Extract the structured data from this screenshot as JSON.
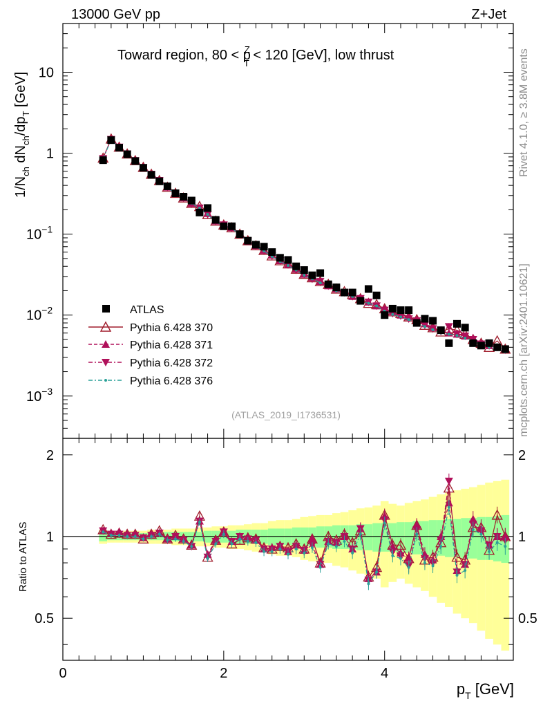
{
  "header": {
    "energy_label": "13000 GeV pp",
    "process_label": "Z+Jet",
    "plot_title": "Toward region, 80 < p",
    "plot_title_sup": "Z",
    "plot_title_sub": "T",
    "plot_title_tail": " < 120 [GeV], low thrust"
  },
  "side_labels": {
    "rivet": "Rivet 4.1.0, ≥ 3.8M events",
    "mcplots": "mcplots.cern.ch [arXiv:2401.10621]"
  },
  "analysis_id": "(ATLAS_2019_I1736531)",
  "y_axis_top": {
    "label_main": "1/N",
    "label_ch1": "ch",
    "label_mid": " dN",
    "label_ch2": "ch",
    "label_dp": "/dp",
    "label_t": "T",
    "label_unit": " [GeV]"
  },
  "y_axis_bottom": {
    "label": "Ratio to ATLAS"
  },
  "x_axis": {
    "label_main": "p",
    "label_sub": "T",
    "label_unit": " [GeV]"
  },
  "legend": {
    "atlas": "ATLAS",
    "s370": "Pythia 6.428 370",
    "s371": "Pythia 6.428 371",
    "s372": "Pythia 6.428 372",
    "s376": "Pythia 6.428 376"
  },
  "colors": {
    "atlas": "#000000",
    "s370": "#a01c2b",
    "s371": "#b0105a",
    "s372": "#b0105a",
    "s376": "#2aa198",
    "band_inner": "#99ff99",
    "band_outer": "#ffff99"
  },
  "chart_data": [
    {
      "type": "scatter",
      "title": "Toward region, 80 < pT^Z < 120 [GeV], low thrust",
      "xlabel": "pT [GeV]",
      "ylabel": "1/Nch dNch/dpT [GeV]",
      "xlim": [
        0,
        5.6
      ],
      "ylim": [
        0.0003,
        40
      ],
      "yscale": "log",
      "x_ticks": [
        0,
        2,
        4
      ],
      "y_ticks": [
        "10^-3",
        "10^-2",
        "10^-1",
        "1",
        "10"
      ],
      "x": [
        0.5,
        0.6,
        0.7,
        0.8,
        0.9,
        1.0,
        1.1,
        1.2,
        1.3,
        1.4,
        1.5,
        1.6,
        1.7,
        1.8,
        1.9,
        2.0,
        2.1,
        2.2,
        2.3,
        2.4,
        2.5,
        2.6,
        2.7,
        2.8,
        2.9,
        3.0,
        3.1,
        3.2,
        3.3,
        3.4,
        3.5,
        3.6,
        3.7,
        3.8,
        3.9,
        4.0,
        4.1,
        4.2,
        4.3,
        4.4,
        4.5,
        4.6,
        4.7,
        4.8,
        4.9,
        5.0,
        5.1,
        5.2,
        5.3,
        5.4,
        5.5
      ],
      "series": [
        {
          "name": "ATLAS",
          "values": [
            0.82,
            1.45,
            1.17,
            0.97,
            0.8,
            0.66,
            0.54,
            0.45,
            0.39,
            0.32,
            0.29,
            0.26,
            0.185,
            0.21,
            0.15,
            0.125,
            0.125,
            0.1,
            0.083,
            0.074,
            0.07,
            0.06,
            0.051,
            0.048,
            0.04,
            0.036,
            0.031,
            0.033,
            0.024,
            0.022,
            0.019,
            0.019,
            0.015,
            0.021,
            0.0175,
            0.01,
            0.012,
            0.0115,
            0.0115,
            0.008,
            0.009,
            0.0085,
            0.0065,
            0.0045,
            0.0078,
            0.007,
            0.0045,
            0.0042,
            0.0045,
            0.004,
            0.0038
          ]
        },
        {
          "name": "Pythia 6.428 370",
          "values": [
            0.87,
            1.5,
            1.19,
            0.98,
            0.81,
            0.67,
            0.55,
            0.46,
            0.38,
            0.32,
            0.28,
            0.24,
            0.22,
            0.175,
            0.145,
            0.13,
            0.12,
            0.1,
            0.083,
            0.072,
            0.063,
            0.054,
            0.047,
            0.043,
            0.037,
            0.032,
            0.029,
            0.026,
            0.024,
            0.021,
            0.0195,
            0.018,
            0.016,
            0.014,
            0.0135,
            0.012,
            0.011,
            0.0105,
            0.0095,
            0.0088,
            0.0075,
            0.007,
            0.0062,
            0.0068,
            0.0065,
            0.0058,
            0.005,
            0.0045,
            0.004,
            0.0048,
            0.0038
          ]
        },
        {
          "name": "Pythia 6.428 371",
          "values": [
            0.86,
            1.5,
            1.2,
            0.98,
            0.82,
            0.67,
            0.55,
            0.46,
            0.38,
            0.32,
            0.28,
            0.24,
            0.21,
            0.18,
            0.145,
            0.13,
            0.12,
            0.1,
            0.082,
            0.072,
            0.063,
            0.055,
            0.047,
            0.042,
            0.037,
            0.032,
            0.029,
            0.026,
            0.023,
            0.021,
            0.019,
            0.017,
            0.016,
            0.0145,
            0.013,
            0.012,
            0.011,
            0.01,
            0.0095,
            0.0088,
            0.0078,
            0.007,
            0.0065,
            0.006,
            0.0058,
            0.0055,
            0.0052,
            0.0045,
            0.0042,
            0.004,
            0.0038
          ]
        },
        {
          "name": "Pythia 6.428 372",
          "values": [
            0.86,
            1.48,
            1.19,
            0.98,
            0.81,
            0.66,
            0.55,
            0.46,
            0.38,
            0.32,
            0.28,
            0.24,
            0.21,
            0.175,
            0.145,
            0.13,
            0.12,
            0.1,
            0.082,
            0.072,
            0.063,
            0.054,
            0.047,
            0.042,
            0.036,
            0.032,
            0.028,
            0.026,
            0.023,
            0.021,
            0.019,
            0.017,
            0.016,
            0.0145,
            0.013,
            0.0115,
            0.0105,
            0.0098,
            0.009,
            0.0085,
            0.0075,
            0.0068,
            0.0063,
            0.0072,
            0.0058,
            0.0055,
            0.005,
            0.0044,
            0.0042,
            0.004,
            0.0037
          ]
        },
        {
          "name": "Pythia 6.428 376",
          "values": [
            0.85,
            1.47,
            1.18,
            0.97,
            0.8,
            0.66,
            0.54,
            0.45,
            0.38,
            0.31,
            0.28,
            0.24,
            0.21,
            0.175,
            0.14,
            0.128,
            0.118,
            0.098,
            0.08,
            0.07,
            0.062,
            0.053,
            0.046,
            0.041,
            0.036,
            0.031,
            0.028,
            0.025,
            0.023,
            0.02,
            0.018,
            0.017,
            0.015,
            0.014,
            0.013,
            0.0112,
            0.0102,
            0.0095,
            0.0088,
            0.0082,
            0.0072,
            0.0066,
            0.006,
            0.0058,
            0.0056,
            0.0052,
            0.0048,
            0.0043,
            0.004,
            0.0038,
            0.0035
          ]
        }
      ]
    },
    {
      "type": "line",
      "title": "Ratio to ATLAS",
      "xlabel": "pT [GeV]",
      "ylabel": "Ratio to ATLAS",
      "xlim": [
        0,
        5.6
      ],
      "ylim": [
        0.35,
        2.3
      ],
      "yscale": "log",
      "y_ticks": [
        0.5,
        1,
        2
      ],
      "reference": 1,
      "band_inner_halfwidth": [
        0.04,
        0.03,
        0.03,
        0.03,
        0.03,
        0.03,
        0.03,
        0.03,
        0.04,
        0.04,
        0.04,
        0.04,
        0.04,
        0.05,
        0.05,
        0.05,
        0.05,
        0.06,
        0.06,
        0.06,
        0.06,
        0.07,
        0.07,
        0.07,
        0.08,
        0.08,
        0.08,
        0.09,
        0.09,
        0.1,
        0.1,
        0.1,
        0.11,
        0.11,
        0.12,
        0.12,
        0.12,
        0.13,
        0.13,
        0.14,
        0.14,
        0.15,
        0.15,
        0.16,
        0.16,
        0.17,
        0.17,
        0.18,
        0.18,
        0.19,
        0.2
      ],
      "band_outer_halfwidth": [
        0.06,
        0.05,
        0.05,
        0.05,
        0.05,
        0.05,
        0.06,
        0.06,
        0.06,
        0.07,
        0.07,
        0.07,
        0.08,
        0.08,
        0.09,
        0.09,
        0.1,
        0.1,
        0.11,
        0.12,
        0.12,
        0.14,
        0.15,
        0.15,
        0.16,
        0.18,
        0.19,
        0.2,
        0.2,
        0.22,
        0.23,
        0.25,
        0.27,
        0.28,
        0.3,
        0.35,
        0.32,
        0.3,
        0.33,
        0.35,
        0.37,
        0.4,
        0.43,
        0.45,
        0.48,
        0.5,
        0.52,
        0.55,
        0.58,
        0.6,
        0.62
      ],
      "series": [
        {
          "name": "Pythia 6.428 370",
          "values": [
            1.06,
            1.02,
            1.03,
            1.02,
            1.02,
            0.98,
            1.02,
            1.05,
            0.98,
            1.01,
            0.98,
            0.93,
            1.19,
            0.84,
            0.97,
            1.04,
            0.94,
            0.97,
            0.99,
            0.98,
            0.91,
            0.9,
            0.92,
            0.91,
            0.94,
            0.9,
            0.98,
            0.8,
            1.0,
            0.97,
            1.02,
            0.95,
            1.05,
            0.71,
            0.77,
            1.2,
            0.93,
            0.93,
            0.83,
            1.1,
            0.82,
            0.84,
            0.95,
            1.51,
            0.84,
            0.82,
            1.08,
            1.08,
            0.89,
            1.2,
            1.0
          ]
        },
        {
          "name": "Pythia 6.428 371",
          "values": [
            1.05,
            1.03,
            1.04,
            1.02,
            1.02,
            0.99,
            1.02,
            1.03,
            0.98,
            1.0,
            0.98,
            0.93,
            1.14,
            0.86,
            0.97,
            1.04,
            0.96,
            1.0,
            0.99,
            0.97,
            0.9,
            0.91,
            0.92,
            0.88,
            0.93,
            0.89,
            0.98,
            0.79,
            0.96,
            0.95,
            1.0,
            0.9,
            1.07,
            0.7,
            0.74,
            1.19,
            0.92,
            0.87,
            0.83,
            1.1,
            0.86,
            0.82,
            1.0,
            1.33,
            0.75,
            0.79,
            1.16,
            1.07,
            0.93,
            1.0,
            1.0
          ]
        },
        {
          "name": "Pythia 6.428 372",
          "values": [
            1.05,
            1.02,
            1.02,
            1.01,
            1.01,
            0.99,
            1.01,
            1.03,
            0.97,
            1.0,
            0.97,
            0.92,
            1.14,
            0.84,
            0.96,
            1.04,
            0.96,
            1.0,
            0.98,
            0.97,
            0.9,
            0.9,
            0.92,
            0.88,
            0.92,
            0.89,
            0.93,
            0.79,
            0.96,
            0.95,
            1.0,
            0.9,
            1.07,
            0.69,
            0.74,
            1.15,
            0.88,
            0.85,
            0.78,
            1.06,
            0.83,
            0.8,
            0.97,
            1.6,
            0.74,
            0.79,
            1.11,
            1.05,
            0.93,
            1.0,
            0.97
          ]
        },
        {
          "name": "Pythia 6.428 376",
          "values": [
            1.04,
            1.01,
            1.01,
            1.0,
            1.0,
            0.98,
            1.0,
            1.02,
            0.97,
            0.98,
            0.96,
            0.92,
            1.13,
            0.83,
            0.94,
            1.02,
            0.94,
            0.98,
            0.96,
            0.95,
            0.88,
            0.88,
            0.9,
            0.86,
            0.9,
            0.87,
            0.91,
            0.77,
            0.94,
            0.92,
            0.96,
            0.87,
            1.02,
            0.67,
            0.74,
            1.12,
            0.85,
            0.83,
            0.77,
            1.02,
            0.8,
            0.78,
            0.92,
            1.28,
            0.72,
            0.75,
            1.06,
            1.02,
            0.88,
            0.95,
            0.92
          ]
        }
      ]
    }
  ]
}
